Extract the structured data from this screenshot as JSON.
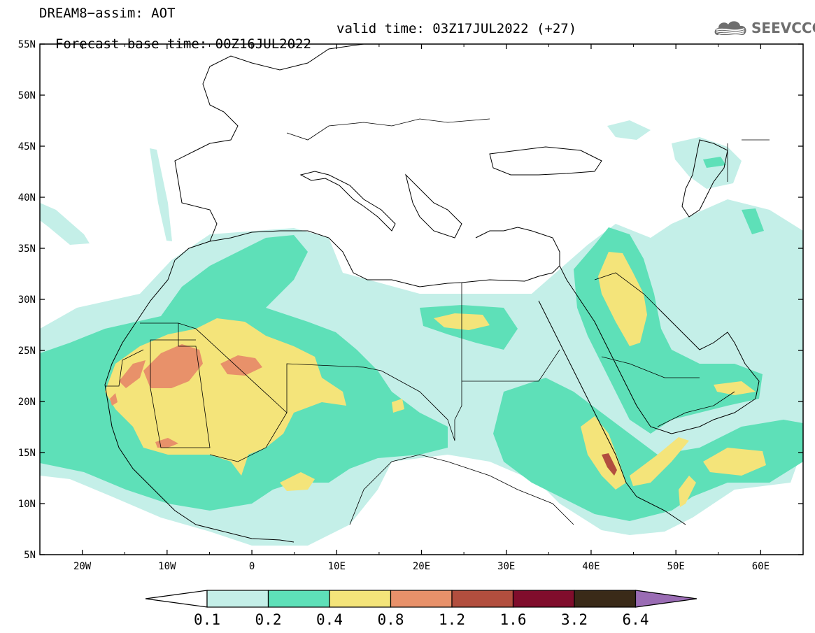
{
  "title": {
    "line1": "DREAM8−assim: AOT",
    "base": "Forecast base time: 00Z16JUL2022",
    "valid": "valid time: 03Z17JUL2022 (+27)"
  },
  "logo": {
    "text": "SEEVCCC",
    "icon": "cloud-logo-icon"
  },
  "map": {
    "lon_range": [
      -25,
      65
    ],
    "lat_range": [
      5,
      55
    ],
    "lat_ticks": [
      "55N",
      "50N",
      "45N",
      "40N",
      "35N",
      "30N",
      "25N",
      "20N",
      "15N",
      "10N",
      "5N"
    ],
    "lon_ticks": [
      "20W",
      "10W",
      "0",
      "10E",
      "20E",
      "30E",
      "40E",
      "50E",
      "60E"
    ],
    "lat_values": [
      55,
      50,
      45,
      40,
      35,
      30,
      25,
      20,
      15,
      10,
      5
    ],
    "lon_values": [
      -20,
      -10,
      0,
      10,
      20,
      30,
      40,
      50,
      60
    ]
  },
  "colorbar": {
    "labels": [
      "0.1",
      "0.2",
      "0.4",
      "0.8",
      "1.2",
      "1.6",
      "3.2",
      "6.4"
    ],
    "colors": [
      "#ffffff",
      "#c4efe8",
      "#5ee0b8",
      "#f4e47a",
      "#e8916a",
      "#b24e3e",
      "#800d2c",
      "#3a2a18",
      "#9a6cb4"
    ]
  },
  "contour_colors": {
    "c01": "#c4efe8",
    "c02": "#5ee0b8",
    "c04": "#f4e47a",
    "c08": "#e8916a",
    "c12": "#b24e3e"
  }
}
